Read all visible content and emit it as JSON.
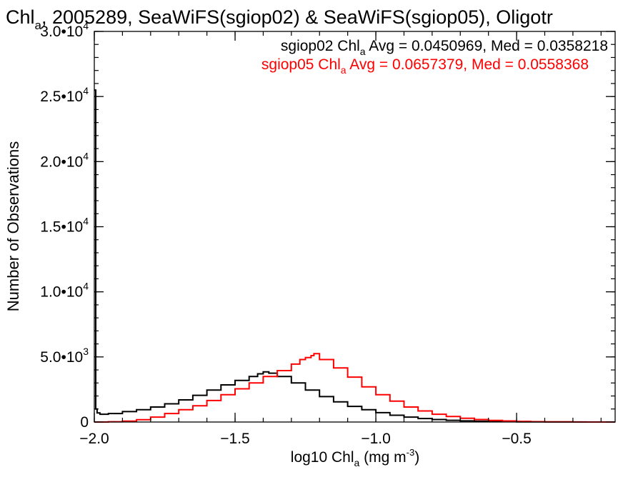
{
  "chart_data": {
    "type": "line",
    "title": {
      "prefix": "Chl",
      "sub": "a",
      "suffix": ", 2005289, SeaWiFS(sgiop02) & SeaWiFS(sgiop05), Oligotr"
    },
    "xlabel": {
      "prefix": "log10 Chl",
      "sub": "a",
      "middle": " (mg m",
      "sup": "-3",
      "suffix": ")"
    },
    "ylabel": "Number of Observations",
    "xlim": [
      -2.0,
      -0.15
    ],
    "ylim": [
      0,
      30000
    ],
    "x_ticks": [
      {
        "value": -2.0,
        "label": "−2.0"
      },
      {
        "value": -1.5,
        "label": "−1.5"
      },
      {
        "value": -1.0,
        "label": "−1.0"
      },
      {
        "value": -0.5,
        "label": "−0.5"
      }
    ],
    "x_minor_step": 0.1,
    "y_ticks": [
      {
        "value": 0,
        "mant": "0",
        "exp": ""
      },
      {
        "value": 5000,
        "mant": "5.0•10",
        "exp": "3"
      },
      {
        "value": 10000,
        "mant": "1.0•10",
        "exp": "4"
      },
      {
        "value": 15000,
        "mant": "1.5•10",
        "exp": "4"
      },
      {
        "value": 20000,
        "mant": "2.0•10",
        "exp": "4"
      },
      {
        "value": 25000,
        "mant": "2.5•10",
        "exp": "4"
      },
      {
        "value": 30000,
        "mant": "3.0•10",
        "exp": "4"
      }
    ],
    "y_minor_step": 1000,
    "legend": [
      {
        "prefix": "sgiop02 Chl",
        "sub": "a",
        "suffix": " Avg = 0.0450969, Med = 0.0358218",
        "color": "#000000"
      },
      {
        "prefix": "sgiop05 Chl",
        "sub": "a",
        "suffix": " Avg = 0.0657379, Med = 0.0558368",
        "color": "#ff0000"
      }
    ],
    "legend_position": "top-right",
    "series": [
      {
        "color": "#000000",
        "step": true,
        "x": [
          -2.0,
          -1.995,
          -1.99,
          -1.98,
          -1.95,
          -1.9,
          -1.85,
          -1.8,
          -1.75,
          -1.7,
          -1.65,
          -1.6,
          -1.55,
          -1.5,
          -1.45,
          -1.42,
          -1.4,
          -1.38,
          -1.35,
          -1.3,
          -1.25,
          -1.2,
          -1.15,
          -1.1,
          -1.05,
          -1.0,
          -0.95,
          -0.9,
          -0.85,
          -0.8,
          -0.75,
          -0.7,
          -0.65,
          -0.6,
          -0.55,
          -0.5,
          -0.45,
          -0.4,
          -0.35,
          -0.3,
          -0.25,
          -0.2,
          -0.15
        ],
        "y": [
          25500,
          1000,
          700,
          600,
          650,
          800,
          950,
          1150,
          1400,
          1700,
          2050,
          2450,
          2850,
          3200,
          3500,
          3700,
          3850,
          3750,
          3500,
          3000,
          2450,
          1950,
          1550,
          1200,
          950,
          720,
          520,
          380,
          270,
          190,
          130,
          90,
          60,
          40,
          25,
          15,
          10,
          6,
          4,
          2,
          1,
          0,
          0
        ]
      },
      {
        "color": "#ff0000",
        "step": true,
        "x": [
          -2.0,
          -1.95,
          -1.9,
          -1.85,
          -1.8,
          -1.75,
          -1.7,
          -1.65,
          -1.6,
          -1.55,
          -1.5,
          -1.45,
          -1.4,
          -1.35,
          -1.3,
          -1.27,
          -1.25,
          -1.23,
          -1.22,
          -1.2,
          -1.15,
          -1.1,
          -1.05,
          -1.0,
          -0.95,
          -0.9,
          -0.85,
          -0.8,
          -0.75,
          -0.7,
          -0.65,
          -0.6,
          -0.55,
          -0.5,
          -0.45,
          -0.4,
          -0.35,
          -0.3,
          -0.25,
          -0.2,
          -0.15
        ],
        "y": [
          0,
          20,
          70,
          180,
          380,
          650,
          950,
          1250,
          1650,
          2100,
          2550,
          3000,
          3500,
          3950,
          4450,
          4800,
          4950,
          5100,
          5250,
          4800,
          4150,
          3450,
          2700,
          2100,
          1600,
          1150,
          850,
          600,
          420,
          290,
          190,
          120,
          80,
          50,
          30,
          18,
          10,
          5,
          2,
          1,
          0
        ]
      }
    ]
  }
}
